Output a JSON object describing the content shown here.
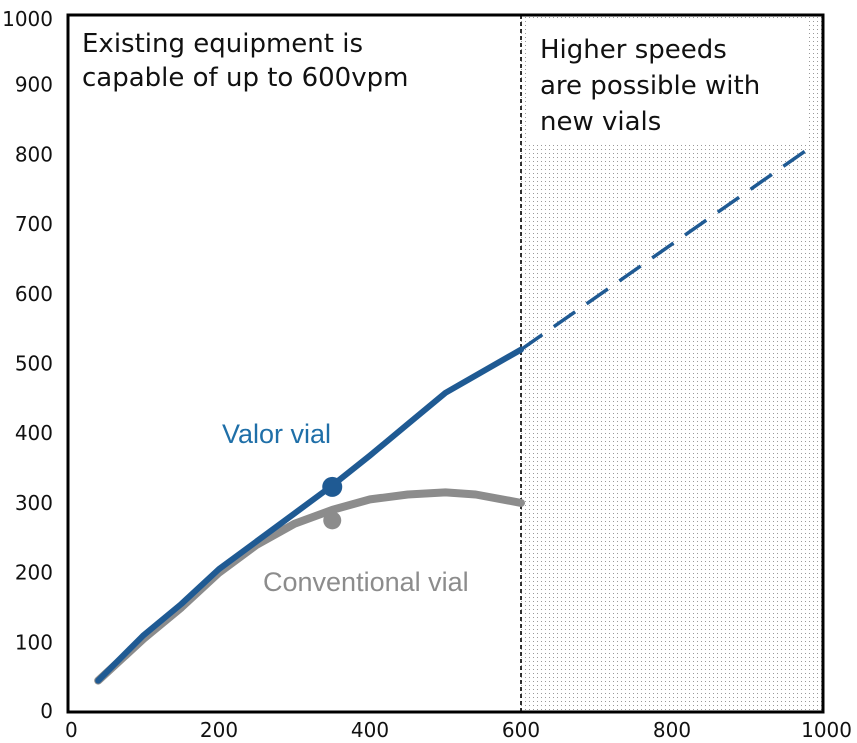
{
  "chart_data": {
    "type": "line",
    "title": "",
    "xlabel": "",
    "ylabel": "",
    "xlim": [
      0,
      1000
    ],
    "ylim": [
      0,
      1000
    ],
    "xticks": [
      "0",
      "200",
      "400",
      "600",
      "800",
      "1000"
    ],
    "yticks": [
      "0",
      "100",
      "200",
      "300",
      "400",
      "500",
      "600",
      "700",
      "800",
      "900",
      "1000"
    ],
    "grid": false,
    "existing_limit_x": 600,
    "annotations": {
      "left_line1": "Existing equipment is",
      "left_line2": "capable of up to 600vpm",
      "right_line1": "Higher speeds",
      "right_line2": "are possible with",
      "right_line3": "new vials"
    },
    "series": [
      {
        "name": "Conventional vial",
        "color": "#8c8c8c",
        "style": "solid",
        "x": [
          40,
          100,
          150,
          200,
          250,
          300,
          350,
          400,
          450,
          500,
          540,
          600
        ],
        "y": [
          45,
          105,
          150,
          200,
          240,
          270,
          290,
          305,
          312,
          315,
          312,
          300
        ],
        "marker": {
          "x": 350,
          "y": 275
        }
      },
      {
        "name": "Valor vial",
        "color": "#1f5a93",
        "style": "solid",
        "x": [
          40,
          100,
          150,
          200,
          300,
          350,
          400,
          450,
          500,
          600
        ],
        "y": [
          45,
          110,
          155,
          205,
          285,
          325,
          368,
          413,
          458,
          520
        ],
        "marker": {
          "x": 350,
          "y": 323
        }
      },
      {
        "name": "Valor vial projected",
        "color": "#1f5a93",
        "style": "dashed",
        "x": [
          600,
          990
        ],
        "y": [
          520,
          815
        ]
      }
    ]
  }
}
